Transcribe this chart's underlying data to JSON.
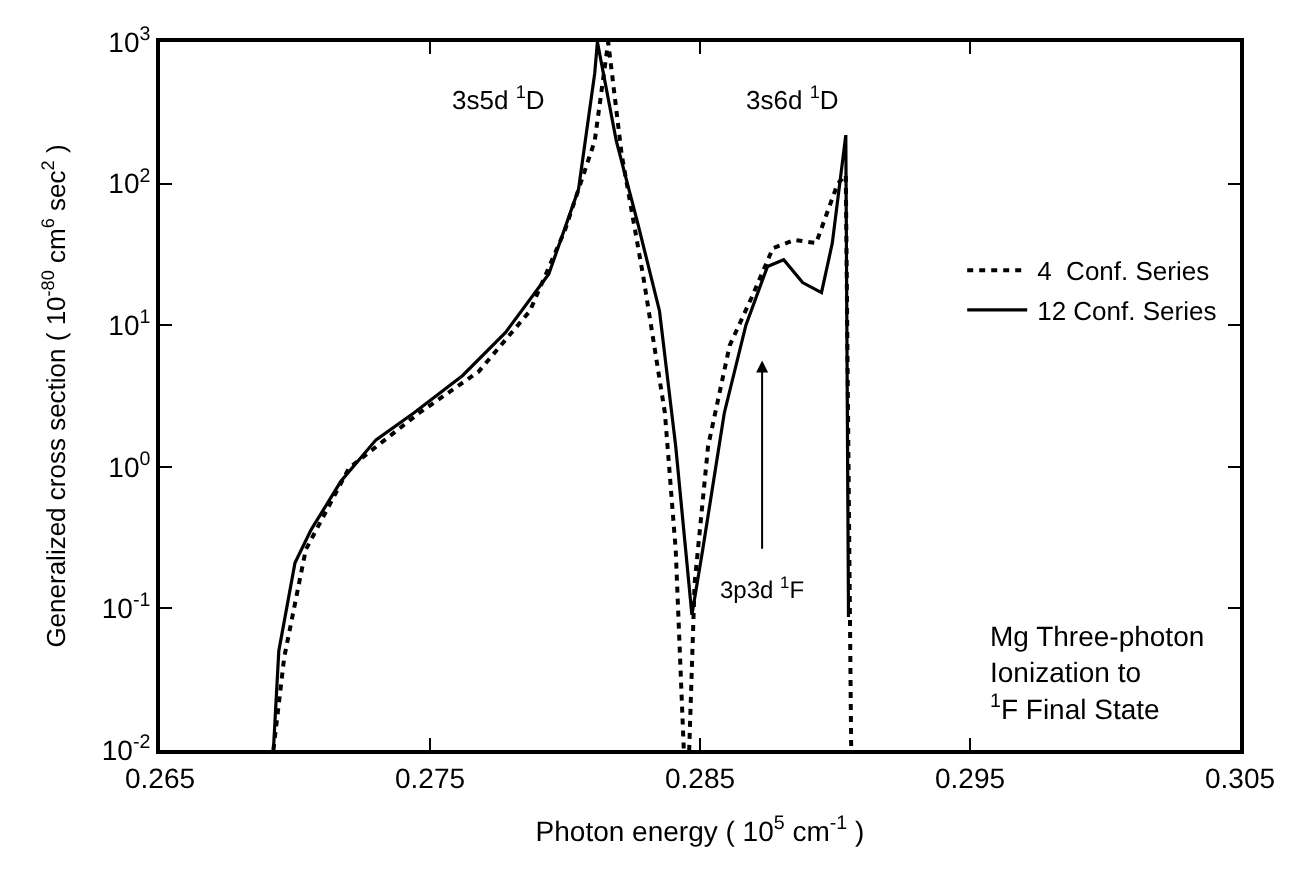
{
  "chart_data": {
    "type": "line",
    "xlabel": "Photon energy ( 10$^{5}$ cm$^{-1}$ )",
    "ylabel": "Generalized cross section ( 10$^{-80}$ cm$^{6}$ sec$^{2}$ )",
    "log": "y",
    "legend": "right",
    "marker": "none",
    "xlim": [
      0.265,
      0.305
    ],
    "xticks": [
      0.265,
      0.275,
      0.285,
      0.295,
      0.305
    ],
    "ylim": [
      0.01,
      1000
    ],
    "yticks": [
      {
        "value": 0.01,
        "label": "10$^{-2}$"
      },
      {
        "value": 0.1,
        "label": "10$^{-1}$"
      },
      {
        "value": 1,
        "label": "10$^{0}$"
      },
      {
        "value": 10,
        "label": "10$^{1}$"
      },
      {
        "value": 100,
        "label": "10$^{2}$"
      },
      {
        "value": 1000,
        "label": "10$^{3}$"
      }
    ],
    "series": [
      {
        "name": "4  Conf. Series",
        "color": "#000000",
        "line_style": "dotted",
        "x": [
          0.2692,
          0.2696,
          0.2704,
          0.272,
          0.2746,
          0.2768,
          0.2787,
          0.28,
          0.2811,
          0.2816,
          0.2821,
          0.2829,
          0.2837,
          0.2841,
          0.2844,
          0.2846,
          0.2848,
          0.2853,
          0.2861,
          0.2869,
          0.2877,
          0.2885,
          0.2893,
          0.2901,
          0.2904,
          0.2906
        ],
        "values": [
          0.01,
          0.045,
          0.26,
          0.98,
          2.4,
          4.7,
          12.6,
          47,
          200,
          1000,
          160,
          22,
          2.4,
          0.26,
          0.01,
          0.01,
          0.15,
          1.4,
          7.2,
          15.5,
          35,
          40,
          38,
          100,
          115,
          0.01
        ]
      },
      {
        "name": "12 Conf. Series",
        "color": "#000000",
        "line_style": "solid",
        "x": [
          0.2692,
          0.2694,
          0.27,
          0.2706,
          0.2717,
          0.273,
          0.2744,
          0.2762,
          0.2778,
          0.2794,
          0.2805,
          0.2811,
          0.2812,
          0.2819,
          0.2827,
          0.2835,
          0.2841,
          0.2847,
          0.2851,
          0.2859,
          0.2867,
          0.2875,
          0.2881,
          0.2888,
          0.2895,
          0.2899,
          0.2904,
          0.2905
        ],
        "values": [
          0.01,
          0.05,
          0.21,
          0.36,
          0.79,
          1.55,
          2.4,
          4.4,
          8.9,
          23,
          91,
          600,
          1000,
          200,
          52,
          12.6,
          1.4,
          0.09,
          0.26,
          2.4,
          10,
          26,
          29,
          20,
          17,
          38,
          220,
          0.087
        ]
      }
    ],
    "annotations": [
      "3s5d $^{1}$D",
      "3s6d $^{1}$D",
      "3p3d $^{1}$F",
      "Mg Three-photon\nIonization to\n$^{1}$F Final State"
    ]
  }
}
